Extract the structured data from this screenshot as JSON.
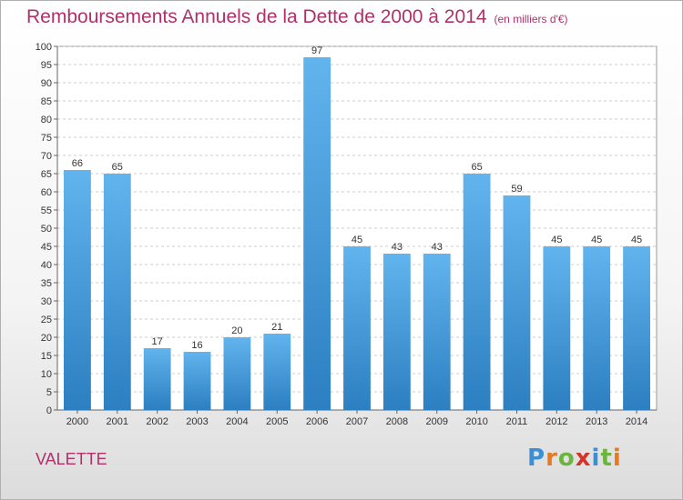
{
  "title": "Remboursements Annuels de la Dette de 2000 à 2014",
  "subtitle": "(en milliers d'€)",
  "commune": "VALETTE",
  "logo": {
    "text": "Proxiti",
    "colors": [
      "#3a8fd6",
      "#e87a1e",
      "#6cb33f",
      "#d4342c",
      "#3a8fd6",
      "#6cb33f",
      "#e87a1e"
    ]
  },
  "colors": {
    "bar_top": "#62b4ee",
    "bar_bottom": "#2c7fc0",
    "title": "#b0306b",
    "grid": "#bfbfbf"
  },
  "chart_data": {
    "type": "bar",
    "title": "Remboursements Annuels de la Dette de 2000 à 2014",
    "xlabel": "",
    "ylabel": "",
    "categories": [
      "2000",
      "2001",
      "2002",
      "2003",
      "2004",
      "2005",
      "2006",
      "2007",
      "2008",
      "2009",
      "2010",
      "2011",
      "2012",
      "2013",
      "2014"
    ],
    "values": [
      66,
      65,
      17,
      16,
      20,
      21,
      97,
      45,
      43,
      43,
      65,
      59,
      45,
      45,
      45
    ],
    "ylim": [
      0,
      100
    ],
    "ytick_step": 5,
    "grid": true
  }
}
